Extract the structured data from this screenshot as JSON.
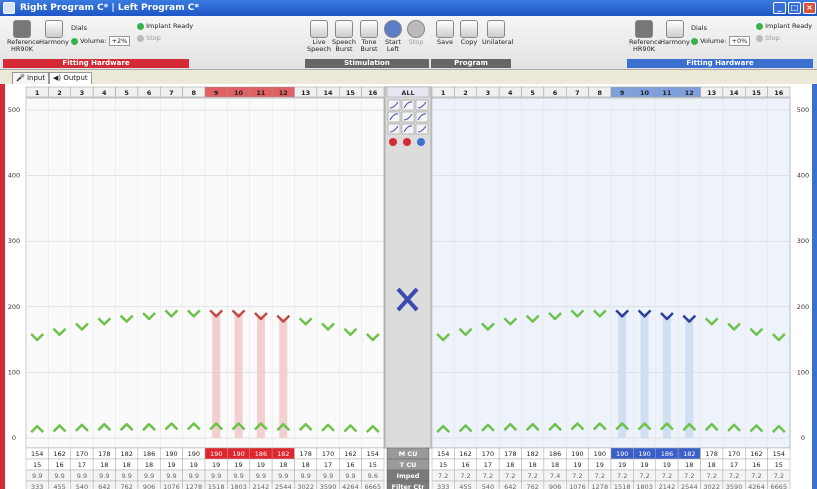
{
  "window": {
    "title": "Right Program C* | Left Program C*"
  },
  "left_toolbar": {
    "reference_label": "Reference",
    "reference_model": "HR90K",
    "harmony_label": "Harmony",
    "dials_label": "Dials",
    "volume_label": "Volume:",
    "volume_value": "+2%",
    "implant_ready": "Implant Ready",
    "stop_label": "Stop",
    "group_caption": "Fitting Hardware"
  },
  "stimulation": {
    "live_speech": "Live Speech",
    "speech_burst": "Speech Burst",
    "tone_burst": "Tone Burst",
    "start_left": "Start Left",
    "stop": "Stop",
    "group_caption": "Stimulation"
  },
  "program": {
    "save": "Save",
    "copy": "Copy",
    "unilateral": "Unilateral",
    "group_caption": "Program"
  },
  "right_toolbar": {
    "reference_label": "Reference",
    "reference_model": "HR90K",
    "harmony_label": "Harmony",
    "dials_label": "Dials",
    "volume_label": "Volume:",
    "volume_value": "+0%",
    "implant_ready": "Implant Ready",
    "stop_label": "Stop",
    "group_caption": "Fitting Hardware"
  },
  "tabs": {
    "input": "Input",
    "output": "Output"
  },
  "channels": [
    "1",
    "2",
    "3",
    "4",
    "5",
    "6",
    "7",
    "8",
    "9",
    "10",
    "11",
    "12",
    "13",
    "14",
    "15",
    "16"
  ],
  "all_label": "ALL",
  "y_axis": [
    "500",
    "400",
    "300",
    "200",
    "100",
    "0"
  ],
  "center_labels": {
    "m": "M",
    "t": "T",
    "cu": "CU",
    "imped": "Imped",
    "filter": "Filter Ctr"
  },
  "chart_data": [
    {
      "type": "table",
      "name": "Right ear",
      "selected_channels": [
        "9",
        "10",
        "11",
        "12"
      ],
      "m_levels": [
        154,
        162,
        170,
        178,
        182,
        186,
        190,
        190,
        190,
        190,
        186,
        182,
        178,
        170,
        162,
        154
      ],
      "t_levels": [
        15,
        16,
        17,
        18,
        18,
        18,
        19,
        19,
        19,
        19,
        19,
        18,
        18,
        17,
        16,
        15
      ],
      "imped": [
        "9.9",
        "9.9",
        "9.9",
        "9.9",
        "9.9",
        "9.9",
        "9.9",
        "9.9",
        "9.9",
        "9.9",
        "9.9",
        "9.9",
        "9.9",
        "9.9",
        "9.9",
        "9.6"
      ],
      "filter_ctr": [
        "333",
        "455",
        "540",
        "642",
        "762",
        "906",
        "1076",
        "1278",
        "1518",
        "1803",
        "2142",
        "2544",
        "3022",
        "3590",
        "4264",
        "6665"
      ],
      "ylim": [
        0,
        500
      ],
      "color": "#e0252e"
    },
    {
      "type": "table",
      "name": "Left ear",
      "selected_channels": [
        "9",
        "10",
        "11",
        "12"
      ],
      "m_levels": [
        154,
        162,
        170,
        178,
        182,
        186,
        190,
        190,
        190,
        190,
        186,
        182,
        178,
        170,
        162,
        154
      ],
      "t_levels": [
        15,
        16,
        17,
        18,
        18,
        18,
        19,
        19,
        19,
        19,
        19,
        18,
        18,
        17,
        16,
        15
      ],
      "imped": [
        "7.2",
        "7.2",
        "7.2",
        "7.2",
        "7.2",
        "7.4",
        "7.2",
        "7.2",
        "7.2",
        "7.2",
        "7.2",
        "7.2",
        "7.2",
        "7.2",
        "7.2",
        "7.2"
      ],
      "filter_ctr": [
        "333",
        "455",
        "540",
        "642",
        "762",
        "906",
        "1076",
        "1278",
        "1518",
        "1803",
        "2142",
        "2544",
        "3022",
        "3590",
        "4264",
        "6665"
      ],
      "ylim": [
        0,
        500
      ],
      "color": "#3b4bb0"
    }
  ]
}
